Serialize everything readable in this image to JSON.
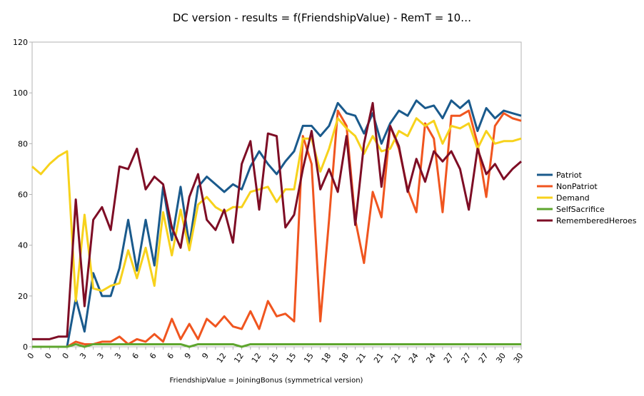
{
  "chart_data": {
    "type": "line",
    "title": "DC version - results = f(FriendshipValue) - RemT = 10…",
    "x_label": "FriendshipValue = JoiningBonus (symmetrical version)",
    "categories": [
      "0",
      null,
      "0",
      null,
      "0",
      null,
      "3",
      null,
      "3",
      null,
      "3",
      null,
      "6",
      null,
      "6",
      null,
      "6",
      null,
      "9",
      null,
      "9",
      null,
      "12",
      null,
      "12",
      null,
      "12",
      null,
      "15",
      null,
      "15",
      null,
      "15",
      null,
      "18",
      null,
      "18",
      null,
      "21",
      null,
      "21",
      null,
      "21",
      null,
      "24",
      null,
      "24",
      null,
      "27",
      null,
      "27",
      null,
      "27",
      null,
      "30",
      null,
      "30"
    ],
    "series": [
      {
        "name": "Patriot",
        "color": "#1a5a8c",
        "values": [
          0,
          0,
          0,
          0,
          0,
          19,
          6,
          29,
          20,
          20,
          31,
          50,
          30,
          50,
          32,
          63,
          42,
          63,
          40,
          63,
          67,
          64,
          61,
          64,
          62,
          71,
          77,
          72,
          68,
          73,
          77,
          87,
          87,
          83,
          87,
          96,
          92,
          91,
          84,
          92,
          80,
          88,
          93,
          91,
          97,
          94,
          95,
          90,
          97,
          94,
          97,
          85,
          94,
          90,
          93,
          92,
          91
        ]
      },
      {
        "name": "NonPatriot",
        "color": "#f0551f",
        "values": [
          0,
          0,
          0,
          0,
          0,
          2,
          1,
          1,
          2,
          2,
          4,
          1,
          3,
          2,
          5,
          2,
          11,
          3,
          9,
          3,
          11,
          8,
          12,
          8,
          7,
          14,
          7,
          18,
          12,
          13,
          10,
          83,
          72,
          10,
          50,
          93,
          87,
          50,
          33,
          61,
          51,
          87,
          78,
          62,
          53,
          88,
          82,
          53,
          91,
          91,
          93,
          80,
          59,
          87,
          92,
          90,
          89
        ]
      },
      {
        "name": "Demand",
        "color": "#f7d21c",
        "values": [
          71,
          68,
          72,
          75,
          77,
          18,
          52,
          23,
          22,
          24,
          25,
          38,
          27,
          39,
          24,
          53,
          36,
          54,
          38,
          56,
          59,
          55,
          53,
          55,
          55,
          61,
          62,
          63,
          57,
          62,
          62,
          82,
          82,
          69,
          78,
          90,
          86,
          83,
          76,
          83,
          77,
          78,
          85,
          83,
          90,
          87,
          89,
          80,
          87,
          86,
          88,
          78,
          85,
          80,
          81,
          81,
          82
        ]
      },
      {
        "name": "SelfSacrifice",
        "color": "#5ea62e",
        "values": [
          0,
          0,
          0,
          0,
          0,
          1,
          0,
          1,
          1,
          1,
          1,
          1,
          1,
          1,
          1,
          1,
          1,
          1,
          0,
          1,
          1,
          1,
          1,
          1,
          0,
          1,
          1,
          1,
          1,
          1,
          1,
          1,
          1,
          1,
          1,
          1,
          1,
          1,
          1,
          1,
          1,
          1,
          1,
          1,
          1,
          1,
          1,
          1,
          1,
          1,
          1,
          1,
          1,
          1,
          1,
          1,
          1
        ]
      },
      {
        "name": "RememberedHeroes",
        "color": "#7e0d25",
        "values": [
          3,
          3,
          3,
          4,
          4,
          58,
          16,
          50,
          55,
          46,
          71,
          70,
          78,
          62,
          67,
          64,
          47,
          39,
          59,
          68,
          50,
          46,
          54,
          41,
          72,
          81,
          54,
          84,
          83,
          47,
          52,
          70,
          85,
          62,
          70,
          61,
          83,
          48,
          80,
          96,
          63,
          87,
          79,
          61,
          74,
          65,
          77,
          73,
          77,
          70,
          54,
          78,
          68,
          72,
          66,
          70,
          73
        ]
      }
    ],
    "ylim": [
      0,
      120
    ],
    "yticks": [
      0,
      20,
      40,
      60,
      80,
      100,
      120
    ],
    "grid": false,
    "legend": "right"
  }
}
